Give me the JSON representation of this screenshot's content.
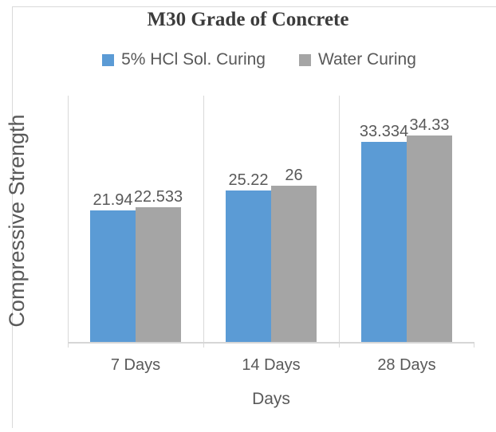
{
  "chart_data": {
    "type": "bar",
    "title": "M30 Grade of Concrete",
    "categories": [
      "7 Days",
      "14 Days",
      "28 Days"
    ],
    "series": [
      {
        "name": "5% HCl Sol. Curing",
        "color": "#5B9BD5",
        "values": [
          21.94,
          25.22,
          33.334
        ],
        "data_labels": [
          "21.94",
          "25.22",
          "33.334"
        ]
      },
      {
        "name": "Water Curing",
        "color": "#A5A5A5",
        "values": [
          22.533,
          26,
          34.33
        ],
        "data_labels": [
          "22.533",
          "26",
          "34.33"
        ]
      }
    ],
    "xlabel": "Days",
    "ylabel": "Compressive Strength",
    "ylim": [
      0,
      41
    ],
    "grid": "vertical category separators only, no y-axis ticks shown",
    "legend_position": "top",
    "colors": {
      "axis_and_grid": "#D9D9D9",
      "text": "#595959",
      "title": "#3C3C3C",
      "background": "#FFFFFF"
    }
  }
}
